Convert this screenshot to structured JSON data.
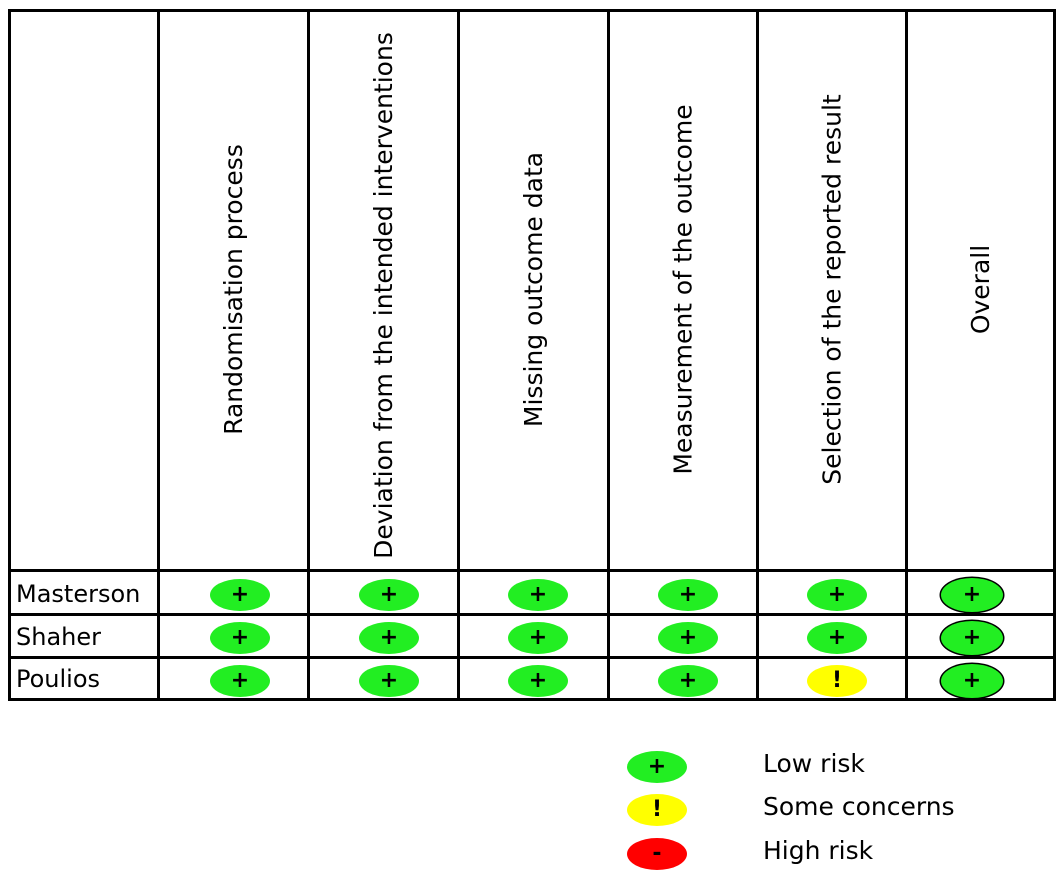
{
  "domains": [
    "Randomisation process",
    "Deviation from the intended interventions",
    "Missing outcome data",
    "Measurement of the outcome",
    "Selection of the reported result",
    "Overall"
  ],
  "studies": [
    {
      "name": "Masterson",
      "judgements": [
        "low",
        "low",
        "low",
        "low",
        "low",
        "low"
      ]
    },
    {
      "name": "Shaher",
      "judgements": [
        "low",
        "low",
        "low",
        "low",
        "low",
        "low"
      ]
    },
    {
      "name": "Poulios",
      "judgements": [
        "low",
        "low",
        "low",
        "low",
        "some",
        "low"
      ]
    }
  ],
  "risk_levels": {
    "low": {
      "symbol": "+",
      "color": "#22ee22"
    },
    "some": {
      "symbol": "!",
      "color": "#ffff00"
    },
    "high": {
      "symbol": "-",
      "color": "#ff0000"
    }
  },
  "legend": [
    {
      "level": "low",
      "label": "Low risk"
    },
    {
      "level": "some",
      "label": "Some concerns"
    },
    {
      "level": "high",
      "label": "High risk"
    }
  ]
}
